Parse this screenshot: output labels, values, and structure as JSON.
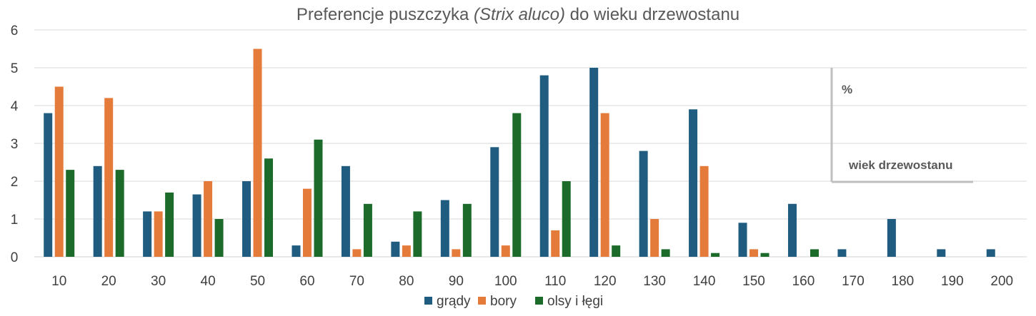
{
  "chart_data": {
    "type": "bar",
    "title_main": "Preferencje puszczyka",
    "title_italic": "(Strix aluco)",
    "title_rest": "do wieku drzewostanu",
    "categories": [
      "10",
      "20",
      "30",
      "40",
      "50",
      "60",
      "70",
      "80",
      "90",
      "100",
      "110",
      "120",
      "130",
      "140",
      "150",
      "160",
      "170",
      "180",
      "190",
      "200"
    ],
    "series": [
      {
        "name": "grądy",
        "color": "#1F5C7F",
        "values": [
          3.8,
          2.4,
          1.2,
          1.65,
          2.0,
          0.3,
          2.4,
          0.4,
          1.5,
          2.9,
          4.8,
          5.0,
          2.8,
          3.9,
          0.9,
          1.4,
          0.2,
          1.0,
          0.2,
          0.2
        ]
      },
      {
        "name": "bory",
        "color": "#E57B3B",
        "values": [
          4.5,
          4.2,
          1.2,
          2.0,
          5.5,
          1.8,
          0.2,
          0.3,
          0.2,
          0.3,
          0.7,
          3.8,
          1.0,
          2.4,
          0.2,
          0,
          0,
          0,
          0,
          0
        ]
      },
      {
        "name": "olsy i łęgi",
        "color": "#1D6B2B",
        "values": [
          2.3,
          2.3,
          1.7,
          1.0,
          2.6,
          3.1,
          1.4,
          1.2,
          1.4,
          3.8,
          2.0,
          0.3,
          0.2,
          0.1,
          0.1,
          0.2,
          0,
          0,
          0,
          0
        ]
      }
    ],
    "ylim": [
      0,
      6
    ],
    "yticks": [
      "0",
      "1",
      "2",
      "3",
      "4",
      "5",
      "6"
    ],
    "grid": true,
    "legend_position": "bottom",
    "annotations": {
      "percent": "%",
      "age": "wiek drzewostanu"
    }
  }
}
